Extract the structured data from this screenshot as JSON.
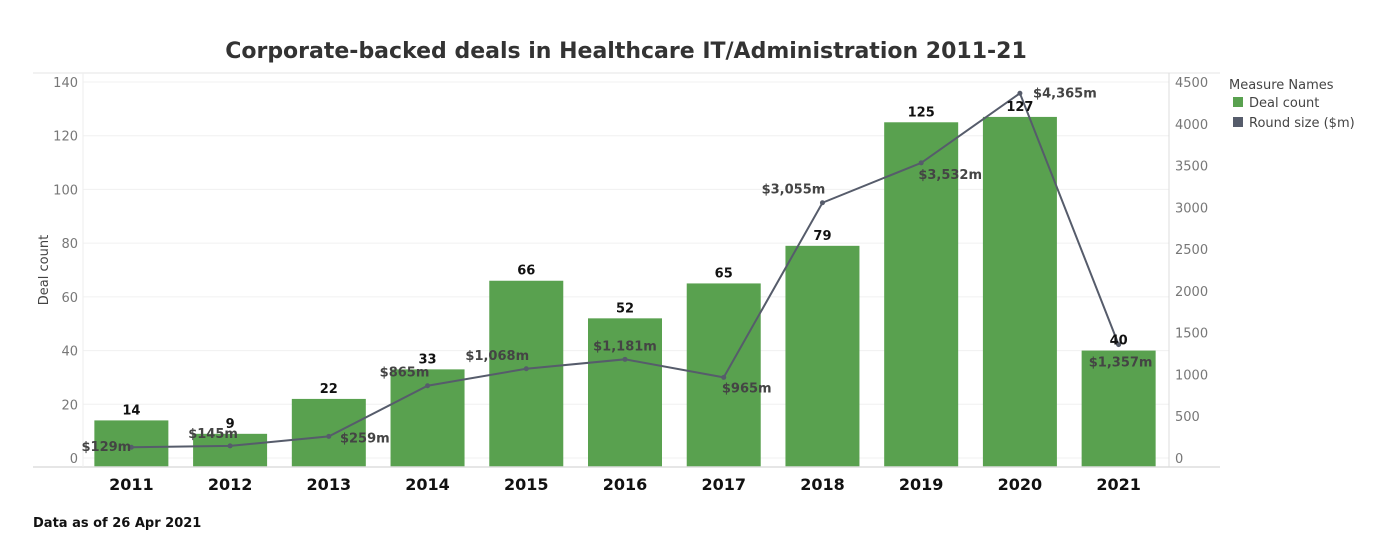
{
  "chart_data": {
    "type": "bar",
    "title": "Corporate-backed deals in Healthcare IT/Administration 2011-21",
    "categories": [
      "2011",
      "2012",
      "2013",
      "2014",
      "2015",
      "2016",
      "2017",
      "2018",
      "2019",
      "2020",
      "2021"
    ],
    "series": [
      {
        "name": "Deal count",
        "type": "bar",
        "axis": "left",
        "color": "#59A14F",
        "values": [
          14,
          9,
          22,
          33,
          66,
          52,
          65,
          79,
          125,
          127,
          40
        ],
        "labels": [
          "14",
          "9",
          "22",
          "33",
          "66",
          "52",
          "65",
          "79",
          "125",
          "127",
          "40"
        ]
      },
      {
        "name": "Round size ($m)",
        "type": "line",
        "axis": "right",
        "color": "#565C6B",
        "values": [
          129,
          145,
          259,
          865,
          1068,
          1181,
          965,
          3055,
          3532,
          4365,
          1357
        ],
        "labels": [
          "$129m",
          "$145m",
          "$259m",
          "$865m",
          "$1,068m",
          "$1,181m",
          "$965m",
          "$3,055m",
          "$3,532m",
          "$4,365m",
          "$1,357m"
        ]
      }
    ],
    "xlabel": "",
    "ylabel": "Deal count",
    "ylim": [
      0,
      140
    ],
    "yticks": [
      0,
      20,
      40,
      60,
      80,
      100,
      120,
      140
    ],
    "y2label": "",
    "y2lim": [
      0,
      4500
    ],
    "y2ticks": [
      0,
      500,
      1000,
      1500,
      2000,
      2500,
      3000,
      3500,
      4000,
      4500
    ],
    "grid": true,
    "legend": {
      "title": "Measure Names",
      "placement": "top-right",
      "entries": [
        {
          "label": "Deal count",
          "color": "#59A14F"
        },
        {
          "label": "Round size ($m)",
          "color": "#565C6B"
        }
      ]
    }
  },
  "footnote": "Data as of 26 Apr 2021"
}
